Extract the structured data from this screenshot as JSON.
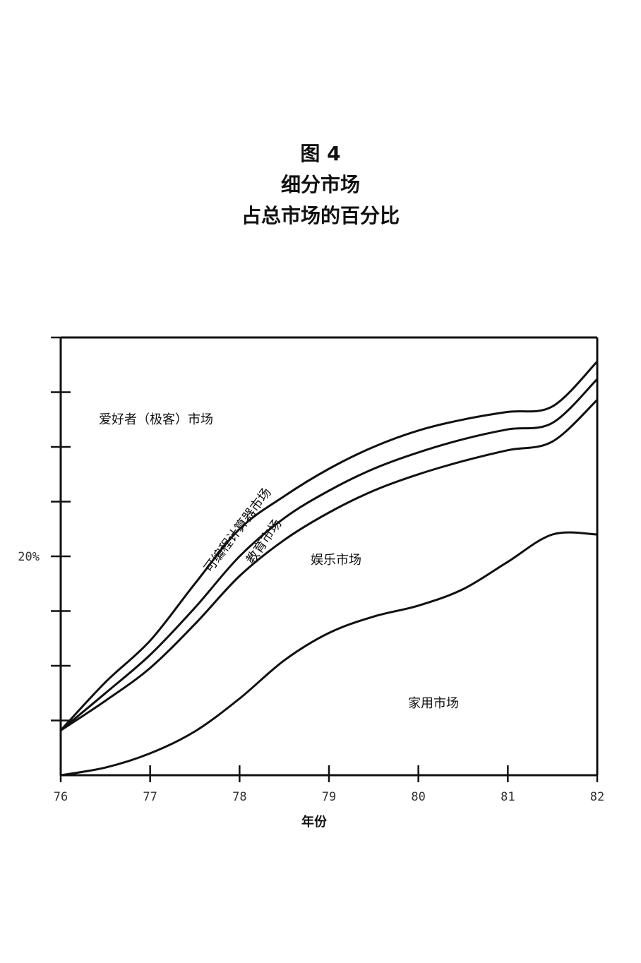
{
  "title_lines": [
    "图 4",
    "细分市场",
    "占总市场的百分比"
  ],
  "chart_data": {
    "type": "area",
    "stacked": true,
    "title": "图 4 细分市场 占总市场的百分比",
    "xlabel": "年份",
    "ylabel": "",
    "x": [
      76,
      76.5,
      77,
      77.5,
      78,
      78.5,
      79,
      79.5,
      80,
      80.5,
      81,
      81.5,
      82
    ],
    "x_ticks": [
      "76",
      "77",
      "78",
      "79",
      "80",
      "81",
      "82"
    ],
    "y_tick_labels": [
      {
        "value": 20,
        "label": "20%"
      }
    ],
    "ylim": [
      0,
      40
    ],
    "grid": false,
    "legend": "none (regions labeled inside chart)",
    "boundaries": [
      {
        "name": "家用市场",
        "values": [
          0,
          0.7,
          2.0,
          4.0,
          7.0,
          10.5,
          13.0,
          14.5,
          15.5,
          17.0,
          19.5,
          22.0,
          22.0
        ]
      },
      {
        "name": "娱乐市场",
        "values": [
          4.1,
          6.8,
          9.8,
          13.8,
          18.2,
          21.5,
          24.0,
          26.0,
          27.5,
          28.7,
          29.7,
          30.5,
          34.3
        ]
      },
      {
        "name": "教育市场",
        "values": [
          4.1,
          7.5,
          11.0,
          15.3,
          20.0,
          23.5,
          26.0,
          28.0,
          29.5,
          30.7,
          31.6,
          32.2,
          36.2
        ]
      },
      {
        "name": "可编程计算器市场",
        "values": [
          4.1,
          8.5,
          12.3,
          17.5,
          22.5,
          25.5,
          28.0,
          30.0,
          31.5,
          32.5,
          33.2,
          33.7,
          37.8
        ]
      }
    ],
    "regions": [
      "家用市场",
      "娱乐市场",
      "教育市场",
      "可编程计算器市场",
      "爱好者（极客）市场"
    ]
  },
  "labels": {
    "hobbyist": "爱好者（极客）市场",
    "calculator": "可编程计算器市场",
    "education": "教育市场",
    "entertainment": "娱乐市场",
    "home": "家用市场"
  },
  "colors": {
    "line": "#111111"
  }
}
